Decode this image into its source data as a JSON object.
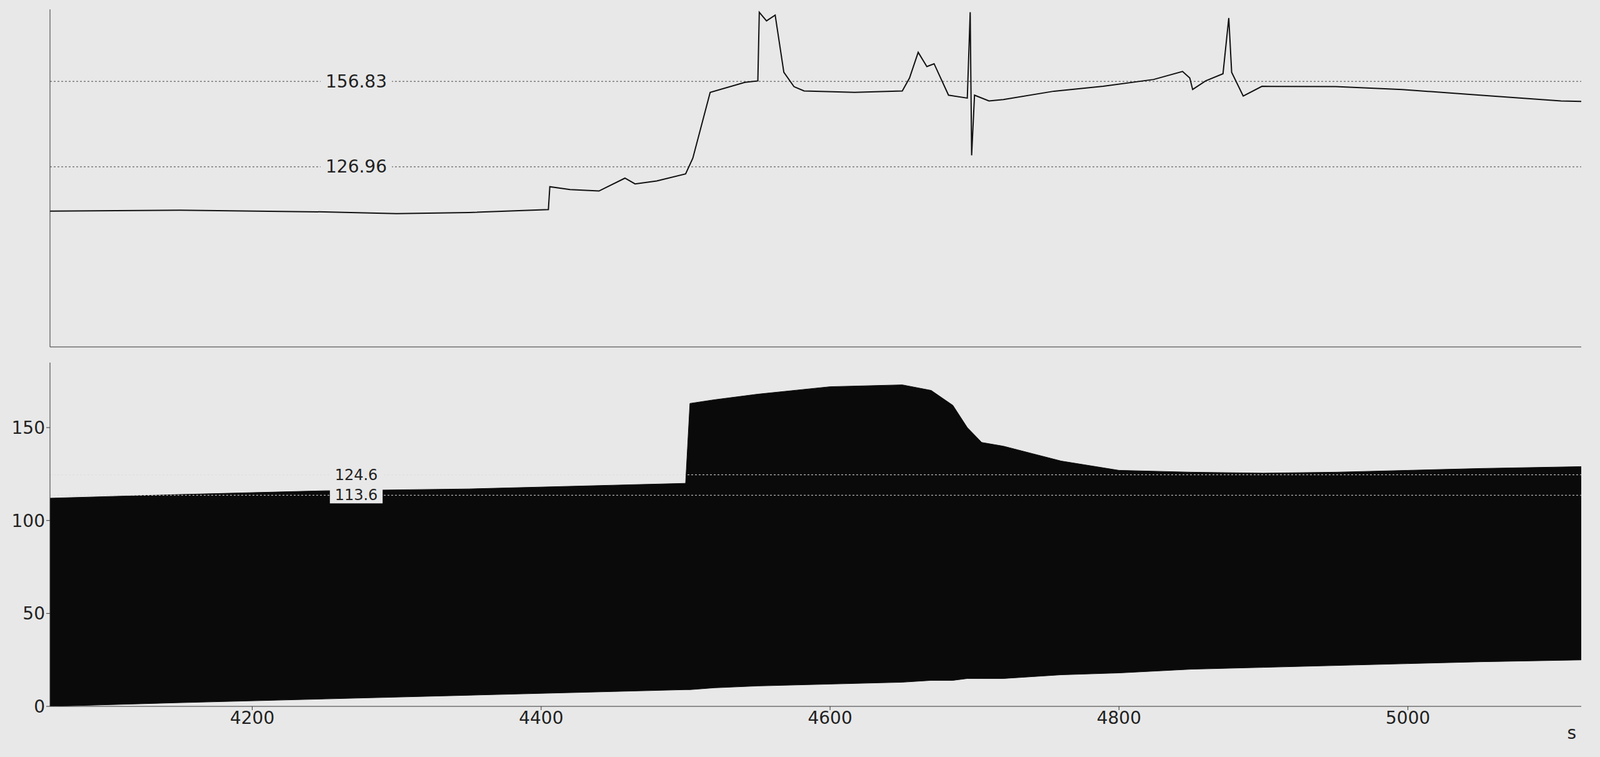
{
  "chart_data": [
    {
      "type": "line",
      "x": [
        4060,
        4150,
        4250,
        4300,
        4350,
        4405,
        4406,
        4420,
        4440,
        4458,
        4465,
        4480,
        4500,
        4505,
        4517,
        4541,
        4550,
        4551,
        4556,
        4562,
        4568,
        4575,
        4582,
        4617,
        4650,
        4655,
        4661,
        4667,
        4672,
        4682,
        4695,
        4697,
        4698,
        4700,
        4710,
        4720,
        4755,
        4789,
        4824,
        4844,
        4849,
        4851,
        4860,
        4872,
        4876,
        4878,
        4886,
        4899,
        4950,
        4996,
        5050,
        5106,
        5120
      ],
      "series": [
        {
          "color": "#111111",
          "values": [
            111.5,
            111.8,
            111.2,
            110.6,
            111,
            112,
            120,
            119,
            118.5,
            123,
            121,
            122,
            124.5,
            130,
            153,
            156.5,
            157,
            181,
            178,
            180,
            160,
            155,
            153.5,
            153,
            153.5,
            158,
            167,
            162,
            163,
            152,
            151,
            181,
            131,
            152,
            150,
            150.5,
            153.4,
            155.1,
            157.5,
            160.3,
            158,
            154,
            157,
            159.5,
            179,
            160,
            151.7,
            155.1,
            155,
            154,
            152,
            150,
            149.8
          ]
        }
      ],
      "xlim": [
        4060,
        5120
      ],
      "ylim": [
        64,
        182
      ],
      "tick_labels": false,
      "reference_lines": [
        156.83,
        126.96
      ]
    },
    {
      "type": "area",
      "x": [
        4060,
        4150,
        4250,
        4350,
        4450,
        4500,
        4503,
        4520,
        4550,
        4600,
        4650,
        4670,
        4685,
        4695,
        4705,
        4720,
        4740,
        4760,
        4800,
        4850,
        4900,
        4950,
        5000,
        5050,
        5120
      ],
      "series": [
        {
          "color": "#0a0a0a",
          "values": [
            112,
            114,
            116,
            117,
            119,
            120,
            163,
            165,
            168,
            172,
            173,
            170,
            162,
            150,
            142,
            140,
            136,
            132,
            127,
            126,
            125.5,
            126,
            127,
            128,
            129
          ],
          "low": [
            0,
            2,
            4,
            6,
            8,
            9,
            9,
            10,
            11,
            12,
            13,
            14,
            14,
            15,
            15,
            15,
            16,
            17,
            18,
            20,
            21,
            22,
            23,
            24,
            25
          ]
        }
      ],
      "xlim": [
        4060,
        5120
      ],
      "xticks": [
        4200,
        4400,
        4600,
        4800,
        5000
      ],
      "ylim": [
        0,
        185
      ],
      "yticks": [
        0,
        50,
        100,
        150
      ],
      "x_label": "s",
      "reference_lines": [
        124.6,
        113.6
      ]
    }
  ]
}
